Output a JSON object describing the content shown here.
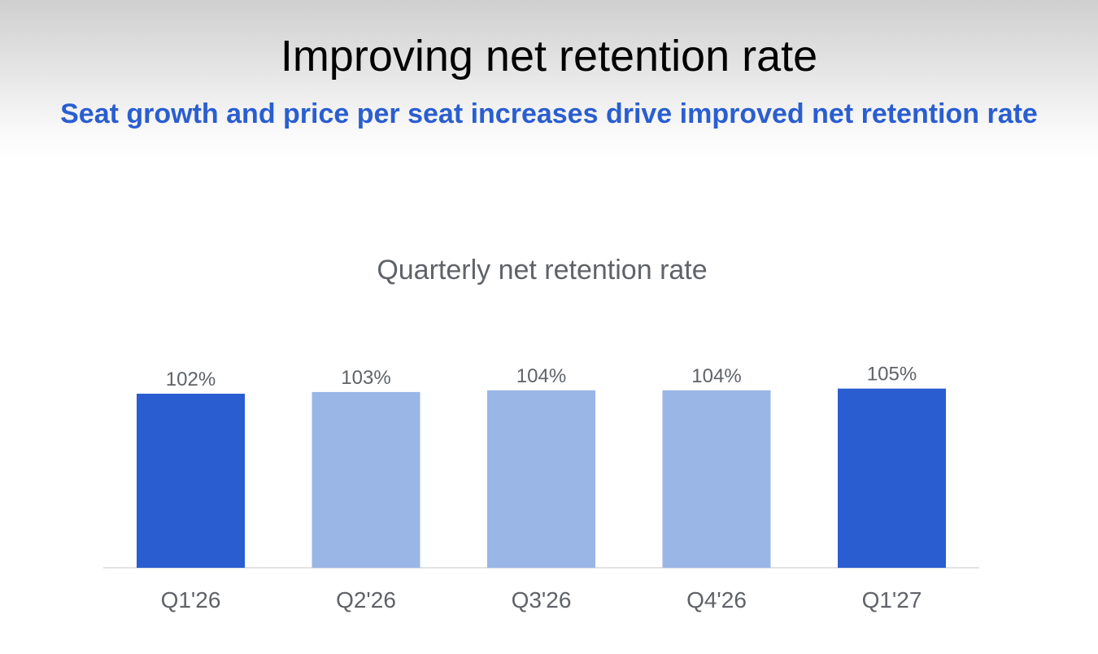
{
  "slide": {
    "title": "Improving net retention rate",
    "subtitle": "Seat growth and price per seat increases drive improved net retention rate"
  },
  "colors": {
    "subtitle": "#2a5ed0",
    "highlight_bar": "#2a5ed0",
    "muted_bar": "#9ab6e6",
    "label_text": "#5f6368",
    "baseline": "#d9d9d9"
  },
  "chart_data": {
    "type": "bar",
    "title": "Quarterly net retention rate",
    "categories": [
      "Q1'26",
      "Q2'26",
      "Q3'26",
      "Q4'26",
      "Q1'27"
    ],
    "values": [
      102,
      103,
      104,
      104,
      105
    ],
    "data_labels": [
      "102%",
      "103%",
      "104%",
      "104%",
      "105%"
    ],
    "highlighted": [
      true,
      false,
      false,
      false,
      true
    ],
    "unit": "%",
    "xlabel": "",
    "ylabel": "",
    "ylim": [
      0,
      110
    ],
    "grid": false,
    "legend": "none"
  }
}
